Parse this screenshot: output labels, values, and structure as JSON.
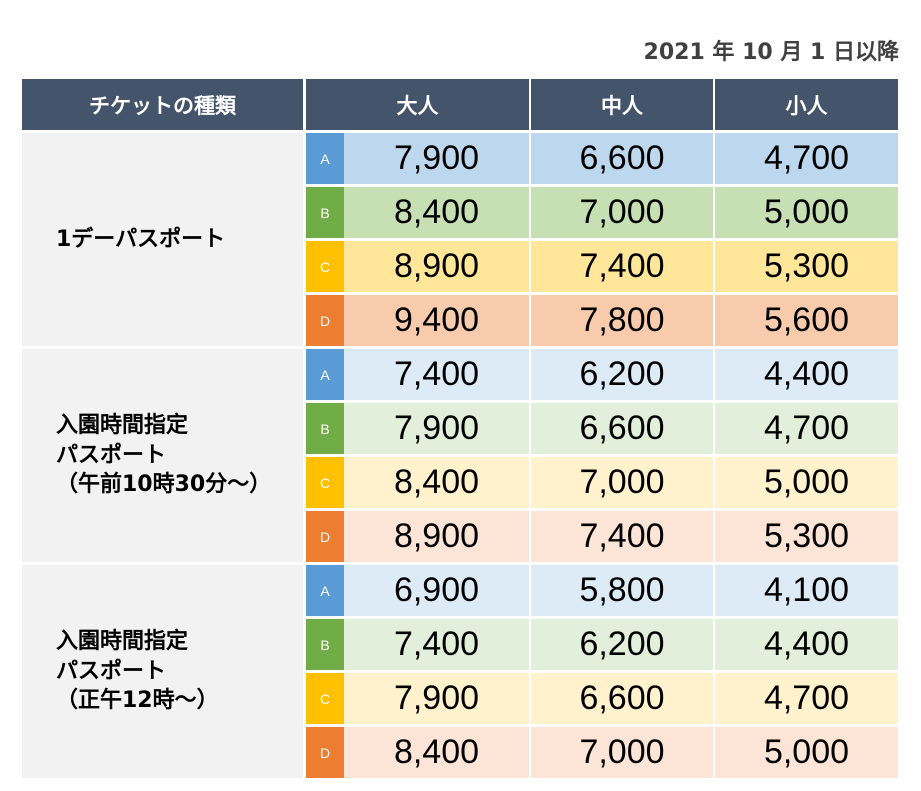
{
  "date_label": "2021 年 10 月 1 日以降",
  "headers": [
    "チケットの種類",
    "大人",
    "中人",
    "小人"
  ],
  "colors": {
    "header": "#44546a",
    "A": "#5b9bd5",
    "B": "#70ad47",
    "C": "#ffc000",
    "D": "#ed7d31",
    "strong": {
      "A": "#bdd7ee",
      "B": "#c6e0b4",
      "C": "#ffe699",
      "D": "#f8cbad"
    },
    "light": {
      "A": "#ddebf7",
      "B": "#e2efda",
      "C": "#fff2cc",
      "D": "#fce4d6"
    }
  },
  "sections": [
    {
      "name": "1デーパスポート",
      "shade": "strong",
      "rows": [
        {
          "tier": "A",
          "prices": [
            "7,900",
            "6,600",
            "4,700"
          ]
        },
        {
          "tier": "B",
          "prices": [
            "8,400",
            "7,000",
            "5,000"
          ]
        },
        {
          "tier": "C",
          "prices": [
            "8,900",
            "7,400",
            "5,300"
          ]
        },
        {
          "tier": "D",
          "prices": [
            "9,400",
            "7,800",
            "5,600"
          ]
        }
      ]
    },
    {
      "name": "入園時間指定\nパスポート\n（午前10時30分～）",
      "shade": "light",
      "rows": [
        {
          "tier": "A",
          "prices": [
            "7,400",
            "6,200",
            "4,400"
          ]
        },
        {
          "tier": "B",
          "prices": [
            "7,900",
            "6,600",
            "4,700"
          ]
        },
        {
          "tier": "C",
          "prices": [
            "8,400",
            "7,000",
            "5,000"
          ]
        },
        {
          "tier": "D",
          "prices": [
            "8,900",
            "7,400",
            "5,300"
          ]
        }
      ]
    },
    {
      "name": "入園時間指定\nパスポート\n（正午12時～）",
      "shade": "light",
      "rows": [
        {
          "tier": "A",
          "prices": [
            "6,900",
            "5,800",
            "4,100"
          ]
        },
        {
          "tier": "B",
          "prices": [
            "7,400",
            "6,200",
            "4,400"
          ]
        },
        {
          "tier": "C",
          "prices": [
            "7,900",
            "6,600",
            "4,700"
          ]
        },
        {
          "tier": "D",
          "prices": [
            "8,400",
            "7,000",
            "5,000"
          ]
        }
      ]
    }
  ]
}
